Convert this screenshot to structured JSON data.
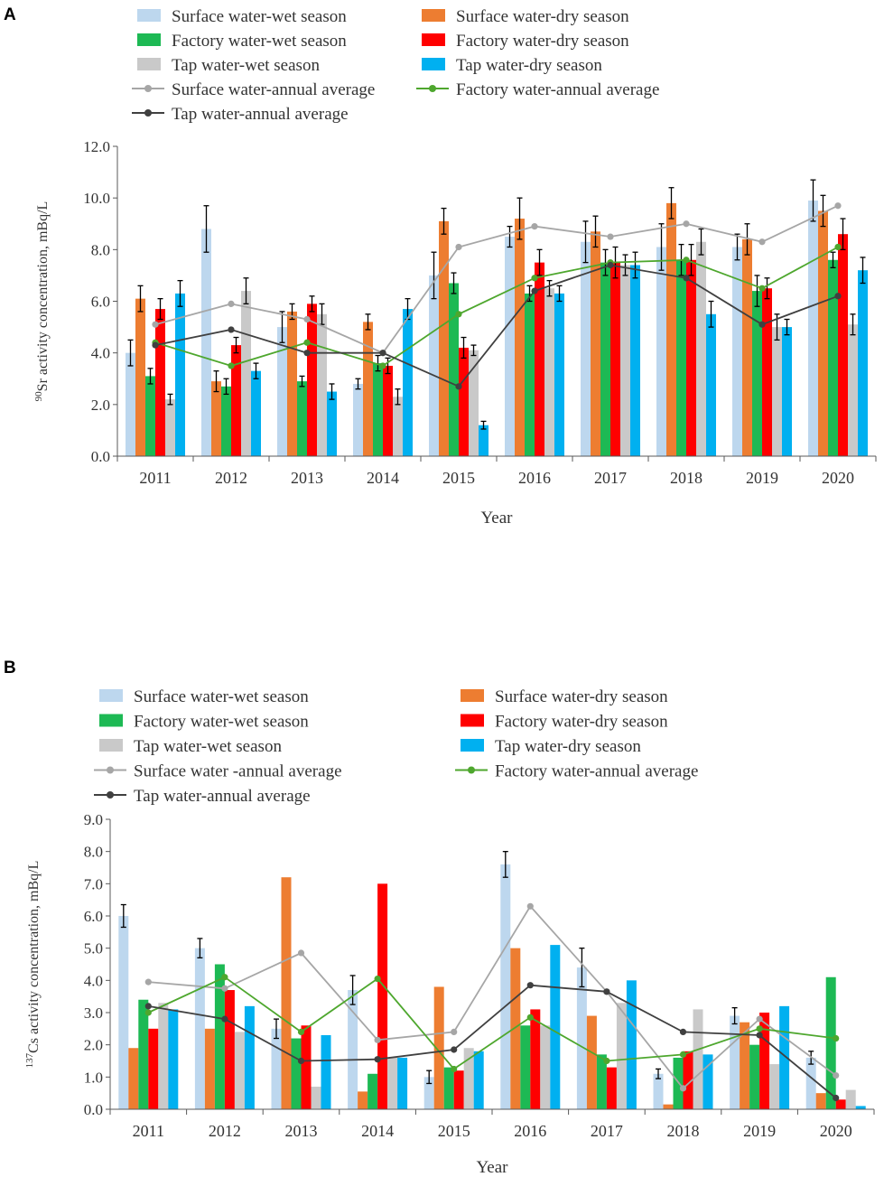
{
  "chart_data": [
    {
      "panel": "A",
      "type": "bar",
      "title": "",
      "xlabel": "Year",
      "ylabel_sup": "90",
      "ylabel": "Sr activity concentration, mBq/L",
      "ylim": [
        0,
        12
      ],
      "ytick_step": 2,
      "ytick_labels": [
        "0.0",
        "2.0",
        "4.0",
        "6.0",
        "8.0",
        "10.0",
        "12.0"
      ],
      "categories": [
        "2011",
        "2012",
        "2013",
        "2014",
        "2015",
        "2016",
        "2017",
        "2018",
        "2019",
        "2020"
      ],
      "bar_series": [
        {
          "name": "Surface water-wet season",
          "color": "#bdd7ee",
          "values": [
            4.0,
            8.8,
            5.0,
            2.8,
            7.0,
            8.5,
            8.3,
            8.1,
            8.1,
            9.9
          ],
          "errors": [
            0.5,
            0.9,
            0.6,
            0.2,
            0.9,
            0.4,
            0.8,
            0.9,
            0.5,
            0.8
          ]
        },
        {
          "name": "Surface water-dry season",
          "color": "#ed7d31",
          "values": [
            6.1,
            2.9,
            5.6,
            5.2,
            9.1,
            9.2,
            8.7,
            9.8,
            8.4,
            9.5
          ],
          "errors": [
            0.5,
            0.4,
            0.3,
            0.3,
            0.5,
            0.8,
            0.6,
            0.6,
            0.6,
            0.6
          ]
        },
        {
          "name": "Factory water-wet season",
          "color": "#1db954",
          "values": [
            3.1,
            2.7,
            2.9,
            3.6,
            6.7,
            6.3,
            7.5,
            7.6,
            6.4,
            7.6
          ],
          "errors": [
            0.3,
            0.3,
            0.2,
            0.3,
            0.4,
            0.3,
            0.5,
            0.6,
            0.6,
            0.3
          ]
        },
        {
          "name": "Factory water-dry season",
          "color": "#ff0000",
          "values": [
            5.7,
            4.3,
            5.9,
            3.5,
            4.2,
            7.5,
            7.5,
            7.6,
            6.5,
            8.6
          ],
          "errors": [
            0.4,
            0.3,
            0.3,
            0.3,
            0.4,
            0.5,
            0.6,
            0.6,
            0.4,
            0.6
          ]
        },
        {
          "name": "Tap water-wet season",
          "color": "#c9c9c9",
          "values": [
            2.2,
            6.4,
            5.5,
            2.3,
            4.1,
            6.5,
            7.4,
            8.3,
            5.0,
            5.1
          ],
          "errors": [
            0.2,
            0.5,
            0.4,
            0.3,
            0.2,
            0.3,
            0.4,
            0.5,
            0.5,
            0.4
          ]
        },
        {
          "name": "Tap water-dry season",
          "color": "#00b0f0",
          "values": [
            6.3,
            3.3,
            2.5,
            5.7,
            1.2,
            6.3,
            7.4,
            5.5,
            5.0,
            7.2
          ],
          "errors": [
            0.5,
            0.3,
            0.3,
            0.4,
            0.15,
            0.3,
            0.5,
            0.5,
            0.3,
            0.5
          ]
        }
      ],
      "line_series": [
        {
          "name": "Surface water-annual average",
          "color": "#a6a6a6",
          "values": [
            5.1,
            5.9,
            5.3,
            4.0,
            8.1,
            8.9,
            8.5,
            9.0,
            8.3,
            9.7
          ]
        },
        {
          "name": "Factory water-annual average",
          "color": "#4ea72e",
          "values": [
            4.4,
            3.5,
            4.4,
            3.5,
            5.5,
            6.9,
            7.5,
            7.6,
            6.5,
            8.1
          ]
        },
        {
          "name": "Tap water-annual average",
          "color": "#404040",
          "values": [
            4.3,
            4.9,
            4.0,
            4.0,
            2.7,
            6.4,
            7.4,
            6.9,
            5.1,
            6.2
          ]
        }
      ]
    },
    {
      "panel": "B",
      "type": "bar",
      "title": "",
      "xlabel": "Year",
      "ylabel_sup": "137",
      "ylabel": "Cs activity concentration, mBq/L",
      "ylim": [
        0,
        9
      ],
      "ytick_step": 1,
      "ytick_labels": [
        "0.0",
        "1.0",
        "2.0",
        "3.0",
        "4.0",
        "5.0",
        "6.0",
        "7.0",
        "8.0",
        "9.0"
      ],
      "categories": [
        "2011",
        "2012",
        "2013",
        "2014",
        "2015",
        "2016",
        "2017",
        "2018",
        "2019",
        "2020"
      ],
      "bar_series": [
        {
          "name": "Surface water-wet season",
          "color": "#bdd7ee",
          "values": [
            6.0,
            5.0,
            2.5,
            3.7,
            1.0,
            7.6,
            4.4,
            1.1,
            2.9,
            1.6
          ],
          "errors": [
            0.35,
            0.3,
            0.3,
            0.45,
            0.2,
            0.4,
            0.6,
            0.15,
            0.25,
            0.2
          ]
        },
        {
          "name": "Surface water-dry season",
          "color": "#ed7d31",
          "values": [
            1.9,
            2.5,
            7.2,
            0.55,
            3.8,
            5.0,
            2.9,
            0.15,
            2.7,
            0.5
          ]
        },
        {
          "name": "Factory water-wet season",
          "color": "#1db954",
          "values": [
            3.4,
            4.5,
            2.2,
            1.1,
            1.3,
            2.6,
            1.7,
            1.6,
            2.0,
            4.1
          ]
        },
        {
          "name": "Factory water-dry season",
          "color": "#ff0000",
          "values": [
            2.5,
            3.7,
            2.6,
            7.0,
            1.2,
            3.1,
            1.3,
            1.8,
            3.0,
            0.3
          ]
        },
        {
          "name": "Tap water-wet season",
          "color": "#c9c9c9",
          "values": [
            3.3,
            2.4,
            0.7,
            1.6,
            1.9,
            2.6,
            3.3,
            3.1,
            1.4,
            0.6
          ]
        },
        {
          "name": "Tap water-dry season",
          "color": "#00b0f0",
          "values": [
            3.1,
            3.2,
            2.3,
            1.6,
            1.8,
            5.1,
            4.0,
            1.7,
            3.2,
            0.1
          ]
        }
      ],
      "line_series": [
        {
          "name": "Surface water -annual average",
          "color": "#a6a6a6",
          "values": [
            3.95,
            3.75,
            4.85,
            2.15,
            2.4,
            6.3,
            3.65,
            0.65,
            2.8,
            1.05
          ]
        },
        {
          "name": "Factory water-annual average",
          "color": "#4ea72e",
          "values": [
            3.0,
            4.1,
            2.4,
            4.05,
            1.25,
            2.85,
            1.5,
            1.7,
            2.5,
            2.2
          ]
        },
        {
          "name": "Tap water-annual average",
          "color": "#404040",
          "values": [
            3.2,
            2.8,
            1.5,
            1.55,
            1.85,
            3.85,
            3.65,
            2.4,
            2.3,
            0.35
          ]
        }
      ]
    }
  ]
}
